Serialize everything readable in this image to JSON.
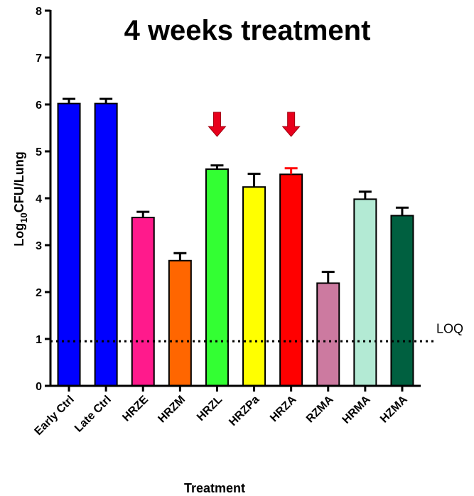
{
  "chart_data": {
    "type": "bar",
    "title": "4 weeks treatment",
    "xlabel": "Treatment",
    "ylabel_main": "Log",
    "ylabel_sub": "10",
    "ylabel_rest": "CFU/Lung",
    "ylim": [
      0,
      8
    ],
    "yticks": [
      "0",
      "1",
      "2",
      "3",
      "4",
      "5",
      "6",
      "7",
      "8"
    ],
    "categories": [
      "Early Ctrl",
      "Late Ctrl",
      "HRZE",
      "HRZM",
      "HRZL",
      "HRZPa",
      "HRZA",
      "RZMA",
      "HRMA",
      "HZMA"
    ],
    "values": [
      6.02,
      6.02,
      3.59,
      2.67,
      4.62,
      4.24,
      4.51,
      2.19,
      3.98,
      3.63
    ],
    "errors": [
      0.1,
      0.1,
      0.12,
      0.16,
      0.08,
      0.28,
      0.13,
      0.24,
      0.16,
      0.17
    ],
    "colors": [
      "#0000ff",
      "#0000ff",
      "#ff1a8c",
      "#ff6600",
      "#33ff33",
      "#ffff00",
      "#ff0000",
      "#cc7aa0",
      "#b3ead4",
      "#006040"
    ],
    "error_colors": [
      "#000000",
      "#000000",
      "#000000",
      "#000000",
      "#000000",
      "#000000",
      "#ff0000",
      "#000000",
      "#000000",
      "#000000"
    ],
    "reference_line": {
      "label": "LOQ",
      "value": 0.95
    },
    "highlight_arrows": [
      "HRZL",
      "HRZA"
    ],
    "arrow_color": "#e8001c",
    "grid": false
  }
}
